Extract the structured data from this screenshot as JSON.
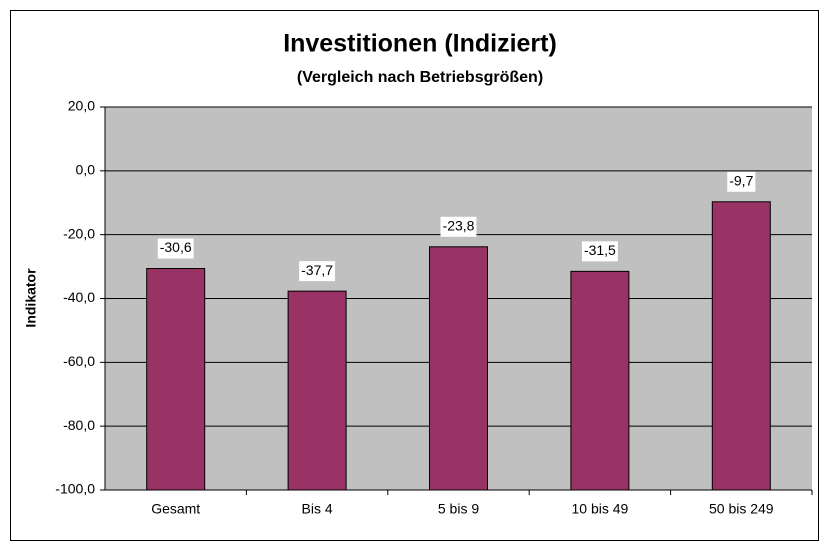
{
  "chart_data": {
    "type": "bar",
    "title": "Investitionen (Indiziert)",
    "subtitle": "(Vergleich nach Betriebsgrößen)",
    "y_label": "Indikator",
    "categories": [
      "Gesamt",
      "Bis 4",
      "5 bis 9",
      "10 bis 49",
      "50 bis 249"
    ],
    "values": [
      -30.6,
      -37.7,
      -23.8,
      -31.5,
      -9.7
    ],
    "value_labels": [
      "-30,6",
      "-37,7",
      "-23,8",
      "-31,5",
      "-9,7"
    ],
    "color": "#993366",
    "ylim": [
      -100,
      20
    ],
    "yticks": [
      {
        "value": -100,
        "label": "-100,0"
      },
      {
        "value": -80,
        "label": "-80,0"
      },
      {
        "value": -60,
        "label": "-60,0"
      },
      {
        "value": -40,
        "label": "-40,0"
      },
      {
        "value": -20,
        "label": "-20,0"
      },
      {
        "value": 0,
        "label": "0,0"
      },
      {
        "value": 20,
        "label": "20,0"
      }
    ],
    "grid": true
  }
}
